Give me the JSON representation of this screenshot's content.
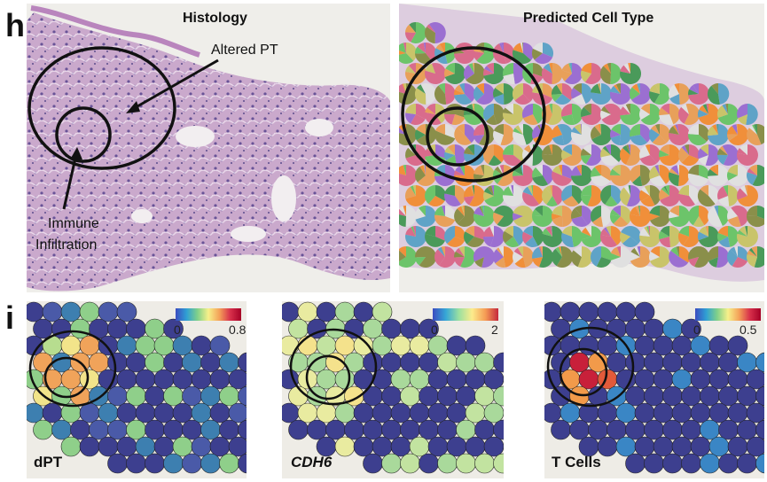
{
  "panel_h": {
    "letter": "h",
    "histology": {
      "title": "Histology",
      "annotation_altered": "Altered PT",
      "annotation_immune_line1": "Immune",
      "annotation_immune_line2": "Infiltration"
    },
    "predicted": {
      "title": "Predicted Cell Type"
    }
  },
  "panel_i": {
    "letter": "i",
    "maps": [
      {
        "label": "dPT",
        "italic": false,
        "scale_min": "0",
        "scale_max": "0.8"
      },
      {
        "label": "CDH6",
        "italic": true,
        "scale_min": "0",
        "scale_max": "2"
      },
      {
        "label": "T Cells",
        "italic": false,
        "scale_min": "0",
        "scale_max": "0.5"
      }
    ]
  },
  "colors": {
    "tissue_pink": "#c99bc4",
    "tissue_purple": "#6b4f9a",
    "background": "#efeeea",
    "spot_low": "#3d3f8f",
    "annotation_stroke": "#111111"
  }
}
